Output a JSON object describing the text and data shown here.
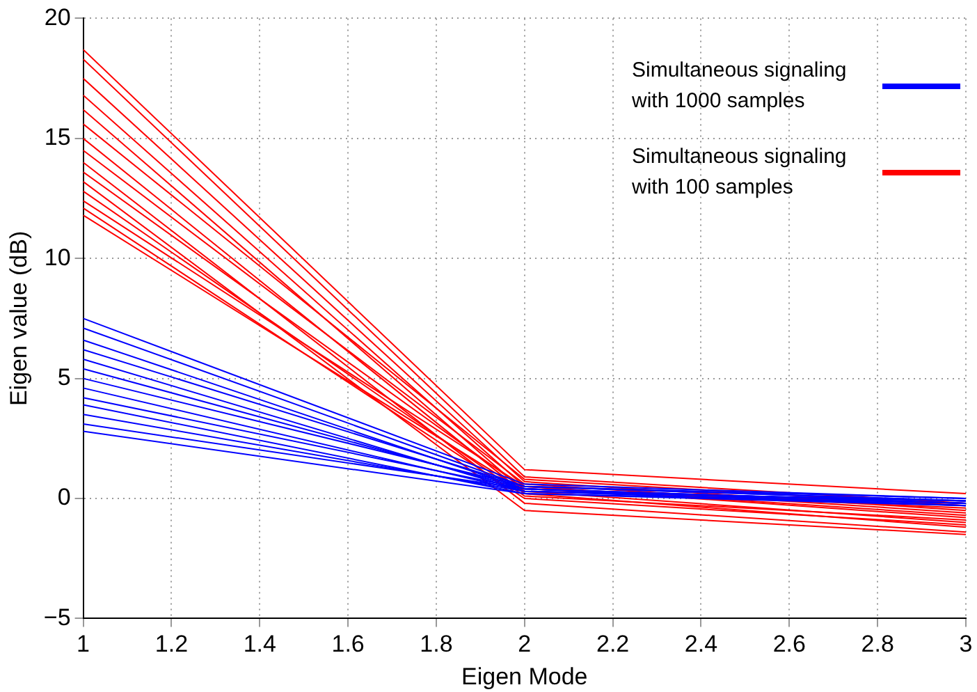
{
  "chart_data": {
    "type": "line",
    "xlabel": "Eigen Mode",
    "ylabel": "Eigen value (dB)",
    "xlim": [
      1,
      3
    ],
    "ylim": [
      -5,
      20
    ],
    "xticks": [
      1,
      1.2,
      1.4,
      1.6,
      1.8,
      2,
      2.2,
      2.4,
      2.6,
      2.8,
      3
    ],
    "yticks": [
      {
        "value": -5,
        "label": "−5"
      },
      0,
      5,
      10,
      15,
      20
    ],
    "grid": true,
    "legend": "top right",
    "marker": "none",
    "line_style": "solid",
    "series": [
      {
        "name": "Simultaneous signaling with 1000 samples",
        "color": "#0000ff",
        "x": [
          1,
          2,
          3
        ],
        "values": [
          7.5,
          0.6,
          0.0
        ]
      },
      {
        "color": "#0000ff",
        "x": [
          1,
          2,
          3
        ],
        "values": [
          7.1,
          0.5,
          -0.1
        ]
      },
      {
        "color": "#0000ff",
        "x": [
          1,
          2,
          3
        ],
        "values": [
          6.6,
          0.4,
          -0.2
        ]
      },
      {
        "color": "#0000ff",
        "x": [
          1,
          2,
          3
        ],
        "values": [
          6.2,
          0.5,
          -0.1
        ]
      },
      {
        "color": "#0000ff",
        "x": [
          1,
          2,
          3
        ],
        "values": [
          5.8,
          0.3,
          -0.3
        ]
      },
      {
        "color": "#0000ff",
        "x": [
          1,
          2,
          3
        ],
        "values": [
          5.4,
          0.4,
          -0.2
        ]
      },
      {
        "color": "#0000ff",
        "x": [
          1,
          2,
          3
        ],
        "values": [
          5.0,
          0.5,
          0.0
        ]
      },
      {
        "color": "#0000ff",
        "x": [
          1,
          2,
          3
        ],
        "values": [
          4.6,
          0.3,
          -0.1
        ]
      },
      {
        "color": "#0000ff",
        "x": [
          1,
          2,
          3
        ],
        "values": [
          4.2,
          0.4,
          -0.3
        ]
      },
      {
        "color": "#0000ff",
        "x": [
          1,
          2,
          3
        ],
        "values": [
          3.9,
          0.2,
          -0.2
        ]
      },
      {
        "color": "#0000ff",
        "x": [
          1,
          2,
          3
        ],
        "values": [
          3.5,
          0.3,
          -0.1
        ]
      },
      {
        "color": "#0000ff",
        "x": [
          1,
          2,
          3
        ],
        "values": [
          3.1,
          0.4,
          -0.2
        ]
      },
      {
        "color": "#0000ff",
        "x": [
          1,
          2,
          3
        ],
        "values": [
          2.8,
          0.2,
          -0.3
        ]
      },
      {
        "name": "Simultaneous signaling with 100 samples",
        "color": "#ff0000",
        "x": [
          1,
          2,
          3
        ],
        "values": [
          18.7,
          1.2,
          0.2
        ]
      },
      {
        "color": "#ff0000",
        "x": [
          1,
          2,
          3
        ],
        "values": [
          18.3,
          0.9,
          -0.2
        ]
      },
      {
        "color": "#ff0000",
        "x": [
          1,
          2,
          3
        ],
        "values": [
          17.5,
          0.7,
          -0.5
        ]
      },
      {
        "color": "#ff0000",
        "x": [
          1,
          2,
          3
        ],
        "values": [
          16.8,
          0.5,
          -0.8
        ]
      },
      {
        "color": "#ff0000",
        "x": [
          1,
          2,
          3
        ],
        "values": [
          16.2,
          0.3,
          -1.0
        ]
      },
      {
        "color": "#ff0000",
        "x": [
          1,
          2,
          3
        ],
        "values": [
          15.6,
          0.8,
          -0.3
        ]
      },
      {
        "color": "#ff0000",
        "x": [
          1,
          2,
          3
        ],
        "values": [
          15.0,
          0.2,
          -1.2
        ]
      },
      {
        "color": "#ff0000",
        "x": [
          1,
          2,
          3
        ],
        "values": [
          14.5,
          0.6,
          -0.6
        ]
      },
      {
        "color": "#ff0000",
        "x": [
          1,
          2,
          3
        ],
        "values": [
          14.0,
          -0.2,
          -1.4
        ]
      },
      {
        "color": "#ff0000",
        "x": [
          1,
          2,
          3
        ],
        "values": [
          13.6,
          0.4,
          -0.4
        ]
      },
      {
        "color": "#ff0000",
        "x": [
          1,
          2,
          3
        ],
        "values": [
          13.2,
          -0.5,
          -1.5
        ]
      },
      {
        "color": "#ff0000",
        "x": [
          1,
          2,
          3
        ],
        "values": [
          12.8,
          0.1,
          -0.9
        ]
      },
      {
        "color": "#ff0000",
        "x": [
          1,
          2,
          3
        ],
        "values": [
          12.4,
          0.5,
          -0.7
        ]
      },
      {
        "color": "#ff0000",
        "x": [
          1,
          2,
          3
        ],
        "values": [
          12.1,
          0.0,
          -1.1
        ]
      },
      {
        "color": "#ff0000",
        "x": [
          1,
          2,
          3
        ],
        "values": [
          11.8,
          0.3,
          -0.2
        ]
      }
    ]
  }
}
